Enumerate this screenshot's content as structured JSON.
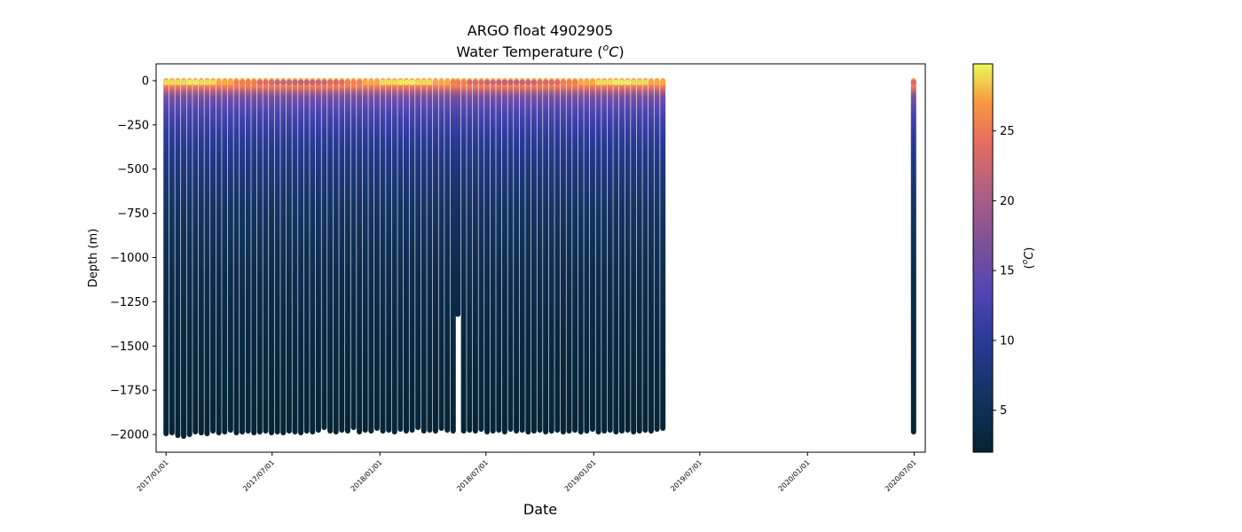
{
  "chart_data": {
    "type": "scatter",
    "title": "ARGO float 4902905",
    "subtitle_prefix": "Water Temperature (",
    "subtitle_unit_o": "o",
    "subtitle_unit_c": "C",
    "subtitle_suffix": ")",
    "xlabel": "Date",
    "ylabel": "Depth (m)",
    "colorbar_label": "(°C)",
    "colorbar_label_o": "o",
    "colorbar_label_c": "C",
    "x_ticks": [
      "2017/01/01",
      "2017/07/01",
      "2018/01/01",
      "2018/07/01",
      "2019/01/01",
      "2019/07/01",
      "2020/01/01",
      "2020/07/01"
    ],
    "x_range": [
      "2016-12-15",
      "2020-07-20"
    ],
    "y_ticks": [
      0,
      -250,
      -500,
      -750,
      -1000,
      -1250,
      -1500,
      -1750,
      -2000
    ],
    "ylim": [
      -2100,
      95
    ],
    "colorbar": {
      "min": 2,
      "max": 29.8,
      "ticks": [
        5,
        10,
        15,
        20,
        25
      ],
      "colormap": "thermal"
    },
    "grid": false,
    "legend": "none",
    "profile_dates": [
      "2017-01-01",
      "2017-01-11",
      "2017-01-21",
      "2017-01-31",
      "2017-02-10",
      "2017-02-20",
      "2017-03-02",
      "2017-03-12",
      "2017-03-22",
      "2017-04-01",
      "2017-04-11",
      "2017-04-21",
      "2017-05-01",
      "2017-05-11",
      "2017-05-21",
      "2017-05-31",
      "2017-06-10",
      "2017-06-20",
      "2017-06-30",
      "2017-07-10",
      "2017-07-20",
      "2017-07-30",
      "2017-08-09",
      "2017-08-19",
      "2017-08-29",
      "2017-09-08",
      "2017-09-18",
      "2017-09-28",
      "2017-10-08",
      "2017-10-18",
      "2017-10-28",
      "2017-11-07",
      "2017-11-17",
      "2017-11-27",
      "2017-12-07",
      "2017-12-17",
      "2017-12-27",
      "2018-01-06",
      "2018-01-16",
      "2018-01-26",
      "2018-02-05",
      "2018-02-15",
      "2018-02-25",
      "2018-03-07",
      "2018-03-17",
      "2018-03-27",
      "2018-04-06",
      "2018-04-16",
      "2018-04-26",
      "2018-05-06",
      "2018-05-14",
      "2018-05-24",
      "2018-06-03",
      "2018-06-13",
      "2018-06-23",
      "2018-07-03",
      "2018-07-13",
      "2018-07-23",
      "2018-08-02",
      "2018-08-12",
      "2018-08-22",
      "2018-09-01",
      "2018-09-11",
      "2018-09-21",
      "2018-10-01",
      "2018-10-11",
      "2018-10-21",
      "2018-10-31",
      "2018-11-10",
      "2018-11-20",
      "2018-11-30",
      "2018-12-10",
      "2018-12-20",
      "2018-12-30",
      "2019-01-09",
      "2019-01-19",
      "2019-01-29",
      "2019-02-08",
      "2019-02-18",
      "2019-02-28",
      "2019-03-10",
      "2019-03-20",
      "2019-03-30",
      "2019-04-09",
      "2019-04-19",
      "2019-04-29",
      "2020-06-30"
    ],
    "profile_max_depths": [
      -1995,
      -1990,
      -2005,
      -2010,
      -2000,
      -1985,
      -1990,
      -1995,
      -1980,
      -1990,
      -1985,
      -1975,
      -1990,
      -1985,
      -1980,
      -1990,
      -1985,
      -1980,
      -1990,
      -1985,
      -1990,
      -1980,
      -1985,
      -1990,
      -1980,
      -1985,
      -1975,
      -1960,
      -1980,
      -1985,
      -1975,
      -1980,
      -1960,
      -1985,
      -1975,
      -1980,
      -1965,
      -1980,
      -1975,
      -1985,
      -1970,
      -1980,
      -1975,
      -1960,
      -1980,
      -1975,
      -1980,
      -1965,
      -1975,
      -1980,
      -1320,
      -1980,
      -1975,
      -1980,
      -1970,
      -1985,
      -1980,
      -1975,
      -1985,
      -1970,
      -1980,
      -1975,
      -1985,
      -1980,
      -1975,
      -1985,
      -1980,
      -1975,
      -1985,
      -1980,
      -1975,
      -1985,
      -1980,
      -1970,
      -1985,
      -1980,
      -1975,
      -1985,
      -1980,
      -1975,
      -1985,
      -1980,
      -1975,
      -1980,
      -1970,
      -1965,
      -1985
    ],
    "temperature_profile": {
      "depth": [
        0,
        -20,
        -40,
        -60,
        -80,
        -100,
        -150,
        -200,
        -300,
        -400,
        -500,
        -700,
        -900,
        -1100,
        -1400,
        -1700,
        -2010
      ],
      "temp": [
        27.5,
        26.5,
        24.5,
        21,
        18,
        16,
        14,
        12.5,
        10.5,
        9,
        8,
        6.3,
        5.2,
        4.3,
        3.4,
        2.7,
        2.3
      ]
    }
  }
}
